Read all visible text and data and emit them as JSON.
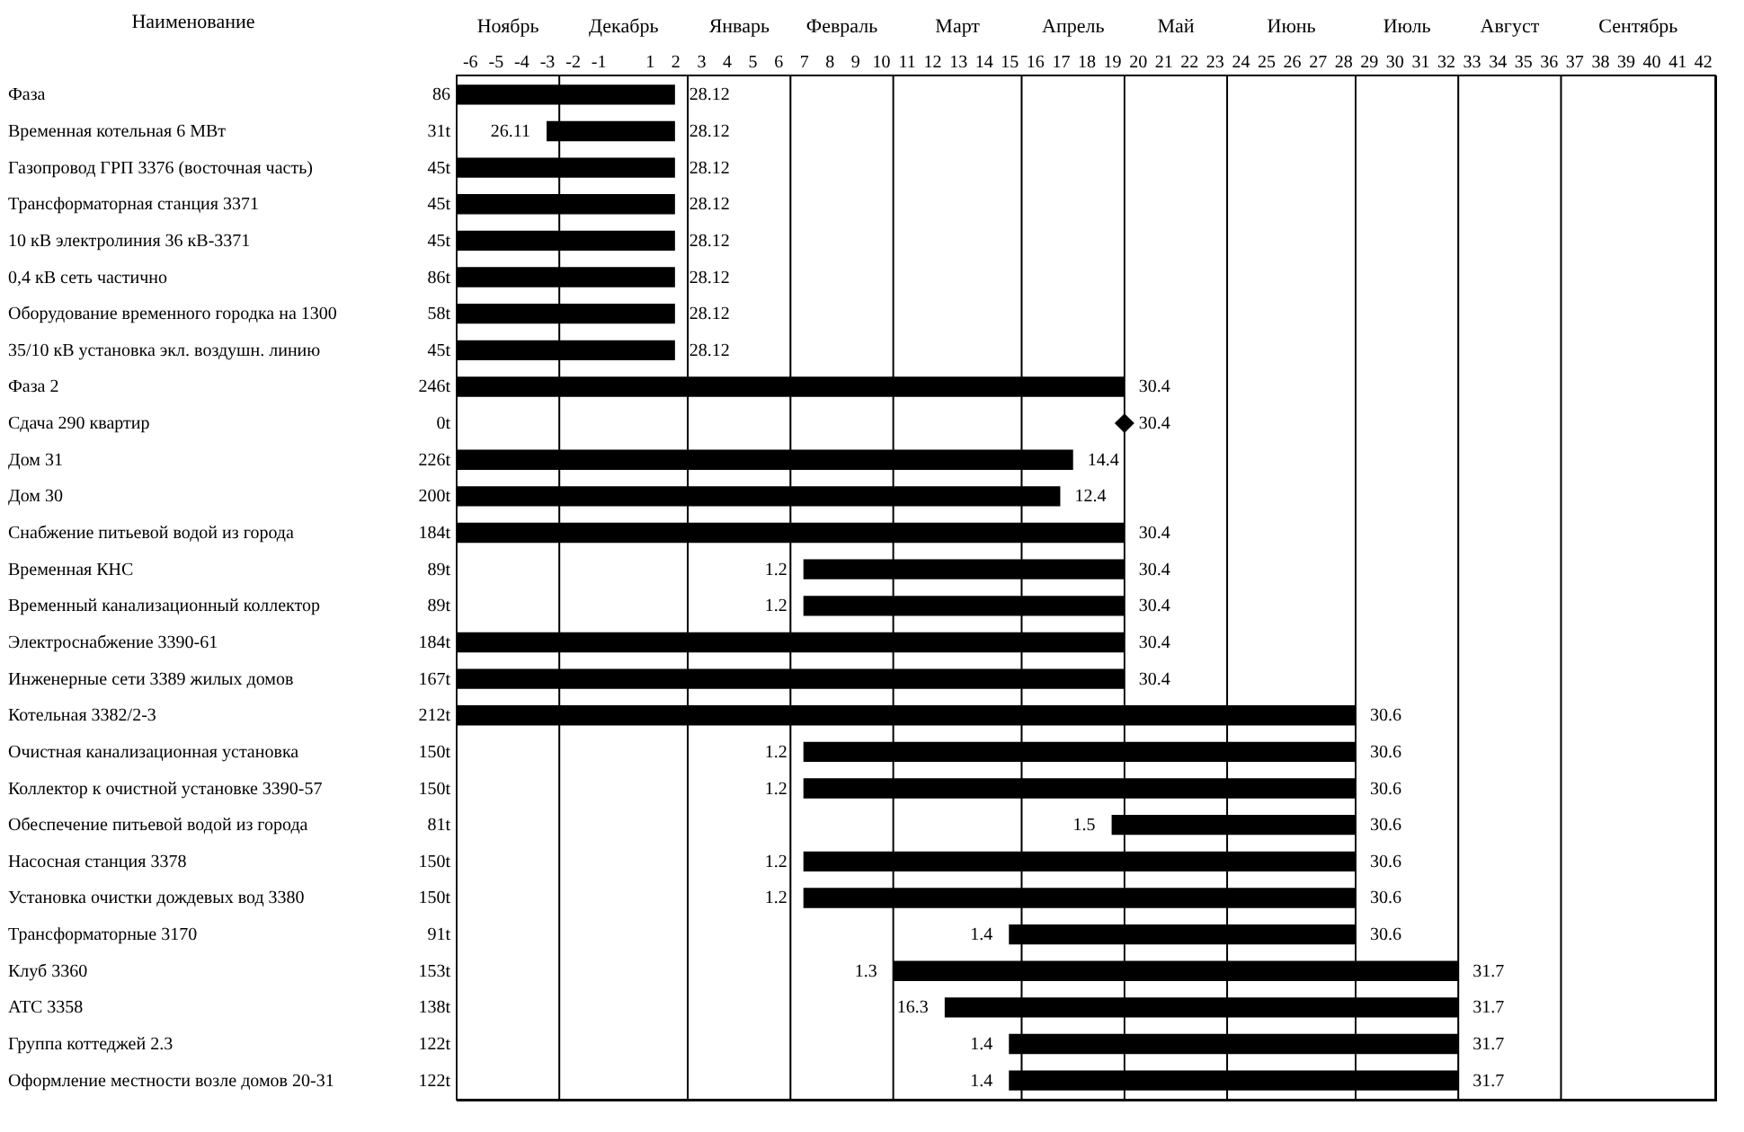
{
  "chart_data": {
    "type": "bar",
    "orientation": "horizontal",
    "ylabel": "Наименование",
    "categories": [
      "Фаза",
      "Временная котельная 6 МВт",
      "Газопровод ГРП 3376 (восточная часть)",
      "Трансформаторная станция 3371",
      "10 кВ электролиния 36 кВ-3371",
      "0,4 кВ сеть частично",
      "Оборудование временного городка на 1300",
      "35/10 кВ установка экл. воздушн. линию",
      "Фаза 2",
      "Сдача 290 квартир",
      "Дом 31",
      "Дом 30",
      "Снабжение питьевой водой из города",
      "Временная КНС",
      "Временный канализационный коллектор",
      "Электроснабжение 3390-61",
      "Инженерные сети 3389 жилых домов",
      "Котельная 3382/2-3",
      "Очистная канализационная установка",
      "Коллектор к очистной установке 3390-57",
      "Обеспечение питьевой водой из города",
      "Насосная станция 3378",
      "Установка очистки дождевых вод 3380",
      "Трансформаторные 3170",
      "Клуб 3360",
      "АТС 3358",
      "Группа коттеджей 2.3",
      "Оформление местности возле домов 20-31"
    ],
    "y2_categories": [
      "86",
      "31t",
      "45t",
      "45t",
      "45t",
      "86t",
      "58t",
      "45t",
      "246t",
      "0t",
      "226t",
      "200t",
      "184t",
      "89t",
      "89t",
      "184t",
      "167t",
      "212t",
      "150t",
      "150t",
      "81t",
      "150t",
      "150t",
      "91t",
      "153t",
      "138t",
      "122t",
      "122t"
    ],
    "xlim": [
      -6.5,
      42.5
    ],
    "xticks": [
      -6,
      -5,
      -4,
      -3,
      -2,
      -1,
      1,
      2,
      3,
      4,
      5,
      6,
      7,
      8,
      9,
      10,
      11,
      12,
      13,
      14,
      15,
      16,
      17,
      18,
      19,
      20,
      21,
      22,
      23,
      24,
      25,
      26,
      27,
      28,
      29,
      30,
      31,
      32,
      33,
      34,
      35,
      36,
      37,
      38,
      39,
      40,
      41,
      42
    ],
    "series": [
      {
        "color": "#000000",
        "base": [
          -6.5,
          -3,
          -6.5,
          -6.5,
          -6.5,
          -6.5,
          -6.5,
          -6.5,
          -6.5,
          null,
          -6.5,
          -6.5,
          -6.5,
          7,
          7,
          -6.5,
          -6.5,
          -6.5,
          7,
          7,
          19,
          7,
          7,
          15,
          10.5,
          12.5,
          15,
          15
        ],
        "values": [
          8.5,
          5,
          8.5,
          8.5,
          8.5,
          8.5,
          8.5,
          8.5,
          26,
          null,
          24,
          23.5,
          26,
          12.5,
          12.5,
          26,
          26,
          35,
          21.5,
          21.5,
          9.5,
          21.5,
          21.5,
          13.5,
          22,
          20,
          17.5,
          17.5
        ]
      },
      {
        "type": "scatter",
        "marker": "diamond",
        "color": "#000000",
        "values": [
          null,
          null,
          null,
          null,
          null,
          null,
          null,
          null,
          null,
          19.5,
          null,
          null,
          null,
          null,
          null,
          null,
          null,
          null,
          null,
          null,
          null,
          null,
          null,
          null,
          null,
          null,
          null,
          null
        ]
      }
    ],
    "bands": [
      {
        "axis": "x",
        "from": -6.5,
        "to": -2.5,
        "label": "Ноябрь",
        "color": "#ffffff"
      },
      {
        "axis": "x",
        "from": -2.5,
        "to": 2.5,
        "label": "Декабрь",
        "color": "#ffffff"
      },
      {
        "axis": "x",
        "from": 2.5,
        "to": 6.5,
        "label": "Январь",
        "color": "#ffffff"
      },
      {
        "axis": "x",
        "from": 6.5,
        "to": 10.5,
        "label": "Февраль",
        "color": "#ffffff"
      },
      {
        "axis": "x",
        "from": 10.5,
        "to": 15.5,
        "label": "Март",
        "color": "#ffffff"
      },
      {
        "axis": "x",
        "from": 15.5,
        "to": 19.5,
        "label": "Апрель",
        "color": "#ffffff"
      },
      {
        "axis": "x",
        "from": 19.5,
        "to": 23.5,
        "label": "Май",
        "color": "#ffffff"
      },
      {
        "axis": "x",
        "from": 23.5,
        "to": 28.5,
        "label": "Июнь",
        "color": "#ffffff"
      },
      {
        "axis": "x",
        "from": 28.5,
        "to": 32.5,
        "label": "Июль",
        "color": "#ffffff"
      },
      {
        "axis": "x",
        "from": 32.5,
        "to": 36.5,
        "label": "Август",
        "color": "#ffffff"
      },
      {
        "axis": "x",
        "from": 36.5,
        "to": 42.5,
        "label": "Сентябрь",
        "color": "#ffffff"
      }
    ],
    "annotations": [
      {
        "text": "28.12",
        "x": 2,
        "y": "Фаза"
      },
      {
        "text": "26.11",
        "x": -3,
        "y": "Временная котельная 6 МВт"
      },
      {
        "text": "28.12",
        "x": 2,
        "y": "Временная котельная 6 МВт"
      },
      {
        "text": "28.12",
        "x": 2,
        "y": "Газопровод ГРП 3376 (восточная часть)"
      },
      {
        "text": "28.12",
        "x": 2,
        "y": "Трансформаторная станция 3371"
      },
      {
        "text": "28.12",
        "x": 2,
        "y": "10 кВ электролиния 36 кВ-3371"
      },
      {
        "text": "28.12",
        "x": 2,
        "y": "0,4 кВ сеть частично"
      },
      {
        "text": "28.12",
        "x": 2,
        "y": "Оборудование временного городка на 1300"
      },
      {
        "text": "28.12",
        "x": 2,
        "y": "35/10 кВ установка экл. воздушн. линию"
      },
      {
        "text": "30.4",
        "x": 19.5,
        "y": "Фаза 2"
      },
      {
        "text": "30.4",
        "x": 19.5,
        "y": "Сдача 290 квартир"
      },
      {
        "text": "14.4",
        "x": 17.5,
        "y": "Дом 31"
      },
      {
        "text": "12.4",
        "x": 17,
        "y": "Дом 30"
      },
      {
        "text": "30.4",
        "x": 19.5,
        "y": "Снабжение питьевой водой из города"
      },
      {
        "text": "1.2",
        "x": 7,
        "y": "Временная КНС"
      },
      {
        "text": "30.4",
        "x": 19.5,
        "y": "Временная КНС"
      },
      {
        "text": "1.2",
        "x": 7,
        "y": "Временный канализационный коллектор"
      },
      {
        "text": "30.4",
        "x": 19.5,
        "y": "Временный канализационный коллектор"
      },
      {
        "text": "30.4",
        "x": 19.5,
        "y": "Электроснабжение 3390-61"
      },
      {
        "text": "30.4",
        "x": 19.5,
        "y": "Инженерные сети 3389 жилых домов"
      },
      {
        "text": "30.6",
        "x": 28.5,
        "y": "Котельная 3382/2-3"
      },
      {
        "text": "1.2",
        "x": 7,
        "y": "Очистная канализационная установка"
      },
      {
        "text": "30.6",
        "x": 28.5,
        "y": "Очистная канализационная установка"
      },
      {
        "text": "1.2",
        "x": 7,
        "y": "Коллектор к очистной установке 3390-57"
      },
      {
        "text": "30.6",
        "x": 28.5,
        "y": "Коллектор к очистной установке 3390-57"
      },
      {
        "text": "1.5",
        "x": 19,
        "y": "Обеспечение питьевой водой из города"
      },
      {
        "text": "30.6",
        "x": 28.5,
        "y": "Обеспечение питьевой водой из города"
      },
      {
        "text": "1.2",
        "x": 7,
        "y": "Насосная станция 3378"
      },
      {
        "text": "30.6",
        "x": 28.5,
        "y": "Насосная станция 3378"
      },
      {
        "text": "1.2",
        "x": 7,
        "y": "Установка очистки дождевых вод 3380"
      },
      {
        "text": "30.6",
        "x": 28.5,
        "y": "Установка очистки дождевых вод 3380"
      },
      {
        "text": "1.4",
        "x": 15,
        "y": "Трансформаторные 3170"
      },
      {
        "text": "30.6",
        "x": 28.5,
        "y": "Трансформаторные 3170"
      },
      {
        "text": "1.3",
        "x": 10.5,
        "y": "Клуб 3360"
      },
      {
        "text": "31.7",
        "x": 32.5,
        "y": "Клуб 3360"
      },
      {
        "text": "16.3",
        "x": 12.5,
        "y": "АТС 3358"
      },
      {
        "text": "31.7",
        "x": 32.5,
        "y": "АТС 3358"
      },
      {
        "text": "1.4",
        "x": 15,
        "y": "Группа коттеджей 2.3"
      },
      {
        "text": "31.7",
        "x": 32.5,
        "y": "Группа коттеджей 2.3"
      },
      {
        "text": "1.4",
        "x": 15,
        "y": "Оформление местности возле домов 20-31"
      },
      {
        "text": "31.7",
        "x": 32.5,
        "y": "Оформление местности возле домов 20-31"
      }
    ]
  }
}
